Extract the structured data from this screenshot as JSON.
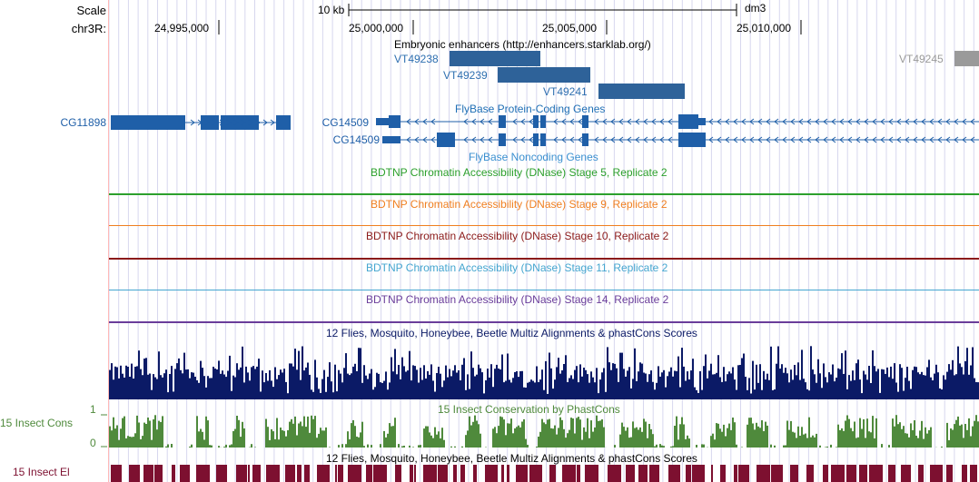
{
  "ruler": {
    "scale_label": "Scale",
    "chrom_label": "chr3R:",
    "scale_bar_text": "10 kb",
    "assembly": "dm3",
    "positions": [
      "24,995,000",
      "25,000,000",
      "25,005,000",
      "25,010,000"
    ]
  },
  "tracks": {
    "enhancers": {
      "title": "Embryonic enhancers (http://enhancers.starklab.org/)",
      "items": [
        "VT49238",
        "VT49239",
        "VT49241",
        "VT49245"
      ]
    },
    "protein_coding": {
      "title": "FlyBase Protein-Coding Genes",
      "genes": [
        "CG11898",
        "CG14509",
        "CG14509"
      ]
    },
    "noncoding": {
      "title": "FlyBase Noncoding Genes"
    },
    "dnase": [
      {
        "title": "BDTNP Chromatin Accessibility (DNase) Stage 5, Replicate 2",
        "color": "#2ca02c"
      },
      {
        "title": "BDTNP Chromatin Accessibility (DNase) Stage 9, Replicate 2",
        "color": "#f07f20"
      },
      {
        "title": "BDTNP Chromatin Accessibility (DNase) Stage 10, Replicate 2",
        "color": "#8b1a1a"
      },
      {
        "title": "BDTNP Chromatin Accessibility (DNase) Stage 11, Replicate 2",
        "color": "#45a6d0"
      },
      {
        "title": "BDTNP Chromatin Accessibility (DNase) Stage 14, Replicate 2",
        "color": "#6a3d9a"
      }
    ],
    "multiz": {
      "title": "12 Flies, Mosquito, Honeybee, Beetle Multiz Alignments & phastCons Scores",
      "color": "#0b1a66"
    },
    "phastcons": {
      "title": "15 Insect Conservation by PhastCons",
      "side_label": "15 Insect Cons",
      "y_max": "1",
      "y_min": "0",
      "color": "#4f8a3c"
    },
    "elements": {
      "title": "12 Flies, Mosquito, Honeybee, Beetle Multiz Alignments & phastCons Scores",
      "side_label": "15 Insect El",
      "color": "#7d1030"
    }
  },
  "colors": {
    "gene": "#1f5fa8",
    "enhancer": "#2e6299",
    "enhancer_gray": "#9a9a9a",
    "grid": "#d7d7ee",
    "left_margin_line": "#ffb8b8"
  }
}
